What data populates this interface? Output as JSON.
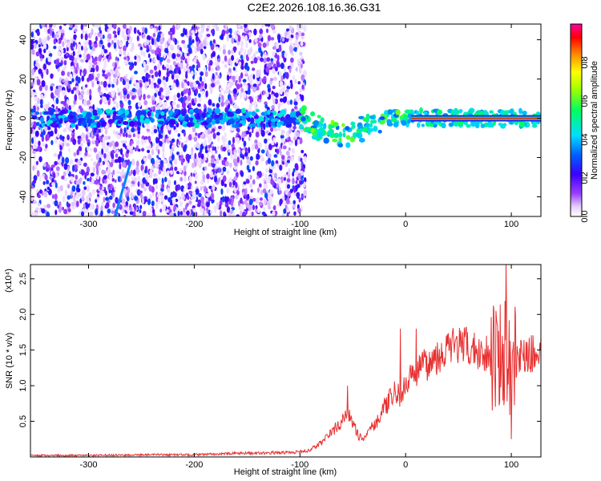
{
  "title": "C2E2.2026.108.16.36.G31",
  "chart_data": [
    {
      "type": "heatmap",
      "xlabel": "Height of straight line (km)",
      "ylabel": "Frequency (Hz)",
      "xlim": [
        -355,
        128
      ],
      "ylim": [
        -50,
        48
      ],
      "xticks": [
        -300,
        -200,
        -100,
        0,
        100
      ],
      "xtick_labels": [
        "-300",
        "-200",
        "-100",
        "0",
        "100"
      ],
      "yticks": [
        -40,
        -20,
        0,
        20,
        40
      ],
      "ytick_labels": [
        "-40",
        "-20",
        "0",
        "20",
        "40"
      ],
      "colorbar": {
        "label": "Normalized spectral amplitude",
        "colormap": "rainbow (white-violet-blue-cyan-green-yellow-red-magenta)",
        "range": [
          0,
          1
        ],
        "ticks": [
          0.0,
          0.2,
          0.4,
          0.6,
          0.8
        ],
        "tick_labels": [
          "0.0",
          "0.2",
          "0.4",
          "0.6",
          "0.8"
        ]
      },
      "features": {
        "noise_region_x": [
          -355,
          -100
        ],
        "center_band_frequency": 0,
        "tone_line_start_x": 5,
        "descending_streak": {
          "x": [
            -275,
            -260
          ],
          "y": [
            -50,
            -22
          ]
        }
      },
      "grid": false
    },
    {
      "type": "line",
      "xlabel": "Height of straight line (km)",
      "ylabel": "SNR (10 * v/v)",
      "y_multiplier_label": "(x10⁴)",
      "xlim": [
        -355,
        128
      ],
      "ylim": [
        0,
        2.7
      ],
      "xticks": [
        -300,
        -200,
        -100,
        0,
        100
      ],
      "xtick_labels": [
        "-300",
        "-200",
        "-100",
        "0",
        "100"
      ],
      "yticks": [
        0.5,
        1.0,
        1.5,
        2.0,
        2.5
      ],
      "ytick_labels": [
        "0.5",
        "1.0",
        "1.5",
        "2.0",
        "2.5"
      ],
      "series": [
        {
          "color": "#e83030",
          "x": [
            -355,
            -300,
            -250,
            -200,
            -160,
            -120,
            -100,
            -90,
            -80,
            -70,
            -60,
            -55,
            -50,
            -45,
            -40,
            -35,
            -30,
            -25,
            -20,
            -15,
            -10,
            -5,
            0,
            5,
            10,
            20,
            30,
            40,
            50,
            60,
            70,
            80,
            90,
            95,
            100,
            105,
            110,
            120,
            128
          ],
          "y": [
            0.02,
            0.02,
            0.03,
            0.03,
            0.05,
            0.06,
            0.07,
            0.1,
            0.2,
            0.35,
            0.5,
            0.6,
            0.5,
            0.3,
            0.25,
            0.4,
            0.45,
            0.55,
            0.7,
            0.8,
            0.9,
            0.85,
            1.0,
            1.1,
            1.2,
            1.3,
            1.42,
            1.52,
            1.58,
            1.52,
            1.48,
            1.45,
            1.5,
            1.4,
            1.25,
            1.4,
            1.42,
            1.45,
            1.45
          ]
        }
      ],
      "spikes": [
        {
          "x": -55,
          "y": 1.0
        },
        {
          "x": -5,
          "y": 1.8
        },
        {
          "x": 10,
          "y": 1.8
        },
        {
          "x": 95,
          "y": 2.7
        },
        {
          "x": 100,
          "y": 0.25
        }
      ],
      "grid": false
    }
  ]
}
